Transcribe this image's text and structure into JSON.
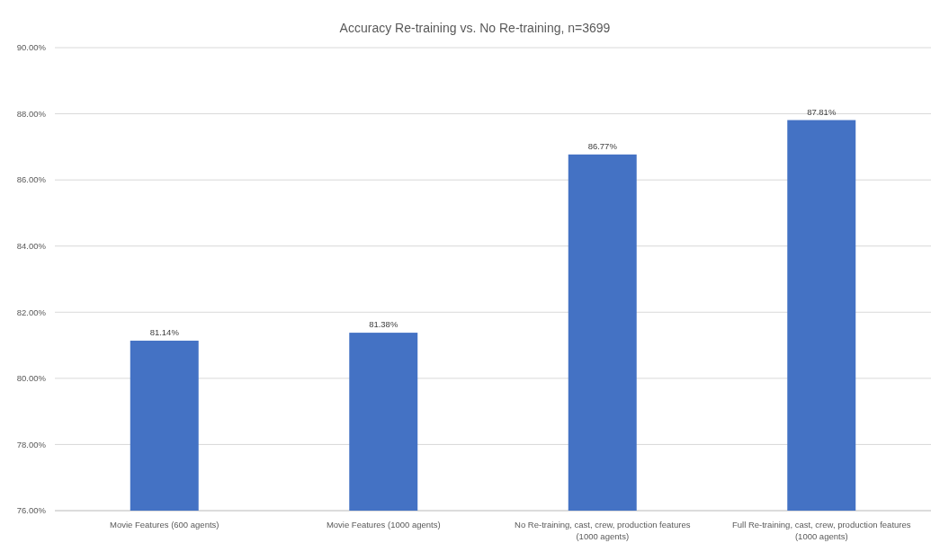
{
  "chart_data": {
    "type": "bar",
    "title": "Accuracy Re-training vs. No Re-training, n=3699",
    "categories": [
      "Movie Features (600 agents)",
      "Movie Features (1000 agents)",
      "No Re-training, cast, crew, production features (1000 agents)",
      "Full Re-training, cast, crew, production features (1000 agents)"
    ],
    "values": [
      81.14,
      81.38,
      86.77,
      87.81
    ],
    "color": "#4472c4",
    "value_labels": [
      "81.14%",
      "81.38%",
      "86.77%",
      "87.81%"
    ],
    "ylim": [
      76,
      90
    ],
    "yticks": [
      {
        "value": 76,
        "label": "76.00%"
      },
      {
        "value": 78,
        "label": "78.00%"
      },
      {
        "value": 80,
        "label": "80.00%"
      },
      {
        "value": 82,
        "label": "82.00%"
      },
      {
        "value": 84,
        "label": "84.00%"
      },
      {
        "value": 86,
        "label": "86.00%"
      },
      {
        "value": 88,
        "label": "88.00%"
      },
      {
        "value": 90,
        "label": "90.00%"
      }
    ],
    "grid": "y"
  }
}
